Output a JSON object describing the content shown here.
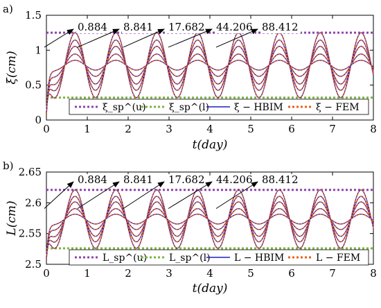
{
  "chart_data": [
    {
      "type": "line",
      "panel_label": "a)",
      "xlabel": "t(day)",
      "ylabel": "ξ(cm)",
      "xlim": [
        0,
        8
      ],
      "ylim": [
        0,
        1.5
      ],
      "xticks": [
        "0",
        "1",
        "2",
        "3",
        "4",
        "5",
        "6",
        "7",
        "8"
      ],
      "yticks": [
        "0",
        "0.5",
        "1",
        "1.5"
      ],
      "bounds": {
        "upper": 1.25,
        "lower": 0.32
      },
      "period_days": 1,
      "mean": 0.785,
      "curve_amplitudes": [
        0.465,
        0.36,
        0.27,
        0.16,
        0.07
      ],
      "annotations": [
        "0.884",
        "8.841",
        "17.682",
        "44.206",
        "88.412"
      ],
      "legend": [
        "ξ_sp^(u)",
        "ξ_sp^(l)",
        "ξ − HBIM",
        "ξ − FEM"
      ],
      "colors": {
        "upper": "#8e44ad",
        "lower": "#7cb342",
        "hbim": "#1f1fbf",
        "fem": "#e8601c"
      }
    },
    {
      "type": "line",
      "panel_label": "b)",
      "xlabel": "t(day)",
      "ylabel": "L(cm)",
      "xlim": [
        0,
        8
      ],
      "ylim": [
        2.5,
        2.65
      ],
      "xticks": [
        "0",
        "1",
        "2",
        "3",
        "4",
        "5",
        "6",
        "7",
        "8"
      ],
      "yticks": [
        "2.5",
        "2.55",
        "2.6",
        "2.65"
      ],
      "bounds": {
        "upper": 2.621,
        "lower": 2.526
      },
      "period_days": 1,
      "mean": 2.5735,
      "curve_amplitudes": [
        0.0475,
        0.037,
        0.028,
        0.017,
        0.008
      ],
      "annotations": [
        "0.884",
        "8.841",
        "17.682",
        "44.206",
        "88.412"
      ],
      "legend": [
        "L_sp^(u)",
        "L_sp^(l)",
        "L − HBIM",
        "L − FEM"
      ],
      "colors": {
        "upper": "#8e44ad",
        "lower": "#7cb342",
        "hbim": "#1f1fbf",
        "fem": "#e8601c"
      }
    }
  ]
}
